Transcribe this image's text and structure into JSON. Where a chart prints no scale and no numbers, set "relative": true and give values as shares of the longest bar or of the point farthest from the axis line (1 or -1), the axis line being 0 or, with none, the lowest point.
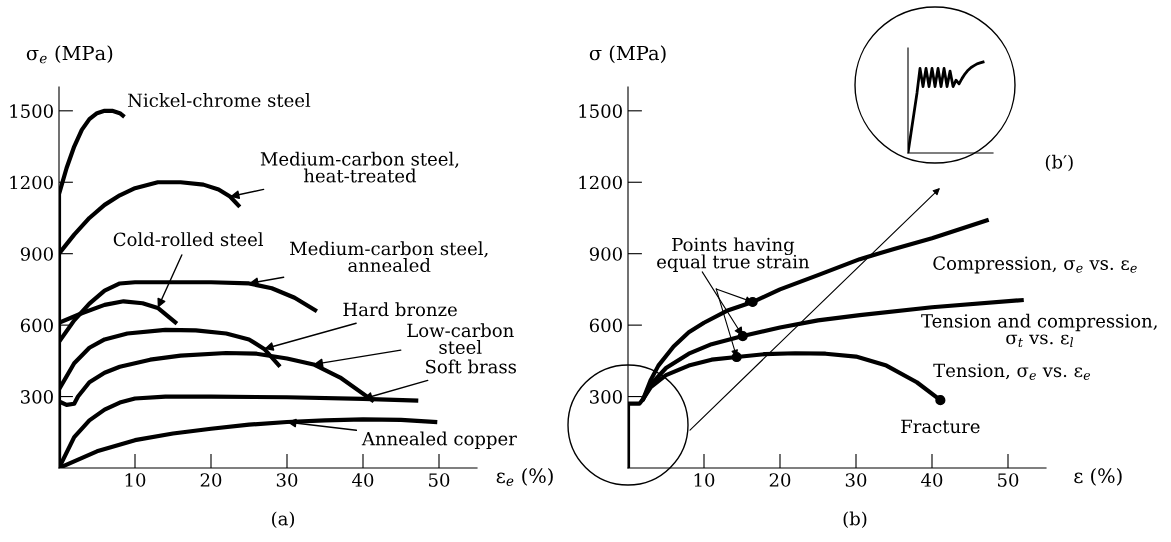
{
  "chart_data": [
    {
      "type": "line",
      "xlabel": "ε$_{e}$ (%)",
      "ylabel": "σ$_{e}$ (MPa)",
      "xlim": [
        0,
        55
      ],
      "ylim": [
        0,
        1600
      ],
      "xticks": [
        10,
        20,
        30,
        40,
        50
      ],
      "yticks": [
        300,
        600,
        900,
        1200,
        1500
      ],
      "grid": false,
      "legend": false,
      "series": [
        {
          "name": "Nickel-chrome steel",
          "color": "#000000",
          "x": [
            0,
            0,
            1,
            2,
            3,
            4,
            5,
            6,
            7,
            8,
            8.4
          ],
          "values": [
            0,
            1150,
            1260,
            1350,
            1420,
            1465,
            1490,
            1500,
            1500,
            1490,
            1480
          ]
        },
        {
          "name": "Medium-carbon steel,\nheat-treated",
          "color": "#000000",
          "x": [
            0,
            2,
            4,
            6,
            8,
            10,
            13,
            16,
            19,
            21,
            22.5,
            23.6
          ],
          "values": [
            900,
            980,
            1050,
            1105,
            1145,
            1175,
            1200,
            1200,
            1190,
            1170,
            1140,
            1103
          ]
        },
        {
          "name": "Medium-carbon steel,\nannealed",
          "color": "#000000",
          "x": [
            0,
            2,
            4,
            6,
            8,
            10,
            20,
            25,
            28,
            31,
            33.7
          ],
          "values": [
            530,
            620,
            690,
            745,
            775,
            780,
            780,
            775,
            755,
            715,
            663
          ]
        },
        {
          "name": "Cold-rolled steel",
          "color": "#000000",
          "x": [
            0,
            3,
            6,
            8.5,
            11,
            13,
            15.3
          ],
          "values": [
            610,
            650,
            685,
            700,
            692,
            672,
            612
          ]
        },
        {
          "name": "Hard bronze",
          "color": "#000000",
          "x": [
            0,
            2,
            4,
            6,
            9,
            14,
            18,
            22,
            25,
            27,
            28.9
          ],
          "values": [
            330,
            440,
            505,
            540,
            565,
            580,
            578,
            565,
            540,
            500,
            432
          ]
        },
        {
          "name": "Low-carbon\nsteel",
          "color": "#000000",
          "x": [
            0,
            0,
            1,
            2,
            2.5,
            4,
            6,
            8,
            12,
            16,
            22,
            26,
            30,
            33.5,
            37,
            41.2
          ],
          "values": [
            0,
            280,
            265,
            270,
            300,
            360,
            400,
            425,
            455,
            472,
            483,
            480,
            460,
            435,
            380,
            285
          ]
        },
        {
          "name": "Soft brass",
          "color": "#000000",
          "x": [
            0,
            2,
            4,
            6,
            8,
            10,
            14,
            20,
            30,
            40,
            47
          ],
          "values": [
            0,
            130,
            200,
            245,
            275,
            292,
            300,
            300,
            297,
            290,
            283
          ]
        },
        {
          "name": "Annealed copper",
          "color": "#000000",
          "x": [
            0,
            5,
            10,
            15,
            20,
            25,
            30,
            35,
            40,
            45,
            49.5
          ],
          "values": [
            0,
            70,
            117,
            145,
            165,
            182,
            193,
            200,
            204,
            202,
            193
          ]
        }
      ],
      "annotations": [
        "(a)"
      ]
    },
    {
      "type": "line",
      "xlabel": "ε (%)",
      "ylabel": "σ (MPa)",
      "xlim": [
        0,
        55
      ],
      "ylim": [
        0,
        1600
      ],
      "xticks": [
        10,
        20,
        30,
        40,
        50
      ],
      "yticks": [
        300,
        600,
        900,
        1200,
        1500
      ],
      "grid": false,
      "legend": false,
      "series": [
        {
          "name": "Compression, σ$_{e}$ vs. ε$_{e}$",
          "color": "#000000",
          "x": [
            0,
            0,
            1.5,
            2,
            3,
            4,
            6,
            8,
            10,
            13,
            16.4,
            20,
            25,
            30.5,
            35,
            40,
            47.2
          ],
          "values": [
            0,
            270,
            270,
            290,
            370,
            430,
            510,
            570,
            610,
            660,
            697,
            750,
            810,
            877,
            920,
            965,
            1040
          ]
        },
        {
          "name": "Tension and compression,\nσ$_{t}$ vs. ε$_{l}$",
          "color": "#000000",
          "x": [
            2,
            3,
            5,
            8,
            11,
            15.1,
            20,
            25,
            30.5,
            40,
            51.8
          ],
          "values": [
            290,
            350,
            420,
            480,
            520,
            554,
            590,
            620,
            642,
            675,
            705
          ]
        },
        {
          "name": "Tension, σ$_{e}$ vs. ε$_{e}$",
          "color": "#000000",
          "x": [
            2,
            3,
            5,
            8,
            11,
            14.3,
            18,
            22,
            26,
            30,
            34,
            38,
            41.1
          ],
          "values": [
            290,
            340,
            390,
            430,
            455,
            466,
            478,
            482,
            480,
            468,
            430,
            360,
            285
          ]
        },
        {
          "type": "scatter",
          "marker": "circle",
          "color": "#000000",
          "x": [
            16.4,
            15.1,
            14.3
          ],
          "values": [
            697,
            554,
            466
          ]
        },
        {
          "type": "scatter",
          "marker": "circle",
          "color": "#000000",
          "x": [
            41.1
          ],
          "values": [
            285
          ]
        }
      ],
      "annotations": [
        {
          "text": "Points having\nequal true strain",
          "x": 15.1,
          "y": 554
        },
        {
          "text": "Fracture",
          "x": 41.1,
          "y": 285
        },
        "(b)"
      ]
    },
    {
      "type": "line",
      "relative": true,
      "categories": [
        null,
        null,
        null,
        null,
        null,
        null,
        null,
        null,
        null,
        null,
        null,
        null,
        null,
        null,
        null,
        null,
        null,
        null,
        null,
        null,
        null,
        null,
        null,
        null,
        null,
        null
      ],
      "series": [
        {
          "color": "#000000",
          "values": [
            0,
            0.22,
            0.44,
            0.66,
            0.93,
            0.73,
            0.93,
            0.73,
            0.93,
            0.73,
            0.93,
            0.73,
            0.93,
            0.73,
            0.9,
            0.73,
            0.8,
            0.76,
            0.82,
            0.87,
            0.91,
            0.94,
            0.96,
            0.98,
            0.99,
            1
          ]
        }
      ],
      "annotations": [
        "(b′)"
      ]
    }
  ]
}
